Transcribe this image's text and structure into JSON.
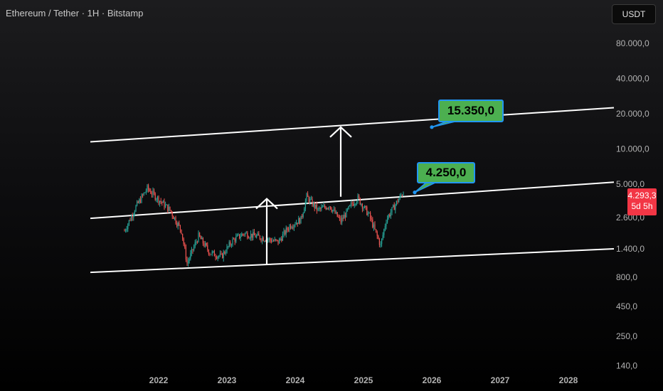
{
  "header": {
    "title": "Ethereum / Tether · 1H · Bitstamp",
    "currency": "USDT"
  },
  "price_badge": {
    "price": "4.293,3",
    "countdown": "5d 5h",
    "color": "#f23645"
  },
  "callouts": {
    "upper": "15.350,0",
    "lower": "4.250,0",
    "fill": "#4caf50",
    "border": "#2196f3"
  },
  "colors": {
    "up_candle": "#26a69a",
    "down_candle": "#ef5350",
    "channel_line": "#ffffff",
    "axis_text": "#b2b2b2"
  },
  "chart_data": {
    "type": "line",
    "title": "Ethereum / Tether · 1H · Bitstamp",
    "y_scale": "log",
    "x_ticks": [
      "2022",
      "2023",
      "2024",
      "2025",
      "2026",
      "2027",
      "2028"
    ],
    "y_ticks": [
      "140,0",
      "250,0",
      "450,0",
      "800,0",
      "1.400,0",
      "2.600,0",
      "5.000,0",
      "10.000,0",
      "20.000,0",
      "40.000,0",
      "80.000,0"
    ],
    "ylim": [
      140,
      120000
    ],
    "price_path": {
      "x": [
        "2021-07",
        "2021-09",
        "2021-11",
        "2022-01",
        "2022-03",
        "2022-05",
        "2022-06",
        "2022-08",
        "2022-10",
        "2022-12",
        "2023-02",
        "2023-04",
        "2023-06",
        "2023-08",
        "2023-10",
        "2023-12",
        "2024-02",
        "2024-03",
        "2024-05",
        "2024-07",
        "2024-09",
        "2024-11",
        "2024-12",
        "2025-02",
        "2025-04",
        "2025-05",
        "2025-07",
        "2025-08"
      ],
      "y": [
        2000,
        3200,
        4600,
        3700,
        3000,
        2000,
        1050,
        1800,
        1300,
        1200,
        1650,
        1900,
        1800,
        1700,
        1600,
        2200,
        2500,
        3900,
        3000,
        3300,
        2400,
        3400,
        3800,
        2700,
        1500,
        2500,
        3600,
        4293
      ]
    },
    "series": [
      {
        "name": "",
        "points": [
          [
            "2021-01",
            2550
          ],
          [
            "2028-09",
            5200
          ]
        ]
      },
      {
        "name": "",
        "points": [
          [
            "2021-01",
            11500
          ],
          [
            "2028-09",
            22500
          ]
        ]
      },
      {
        "name": "",
        "points": [
          [
            "2021-01",
            880
          ],
          [
            "2028-09",
            1400
          ]
        ]
      }
    ],
    "arrows": [
      {
        "x": "2023-08",
        "from": 1020,
        "to": 3750
      },
      {
        "x": "2024-09",
        "from": 3900,
        "to": 15350
      }
    ],
    "annotations": [
      {
        "label": "15.350,0",
        "x": "2026-01",
        "y": 15350
      },
      {
        "label": "4.250,0",
        "x": "2025-10",
        "y": 4250
      }
    ],
    "last_price": 4293.3,
    "grid": false,
    "legend": "none"
  }
}
